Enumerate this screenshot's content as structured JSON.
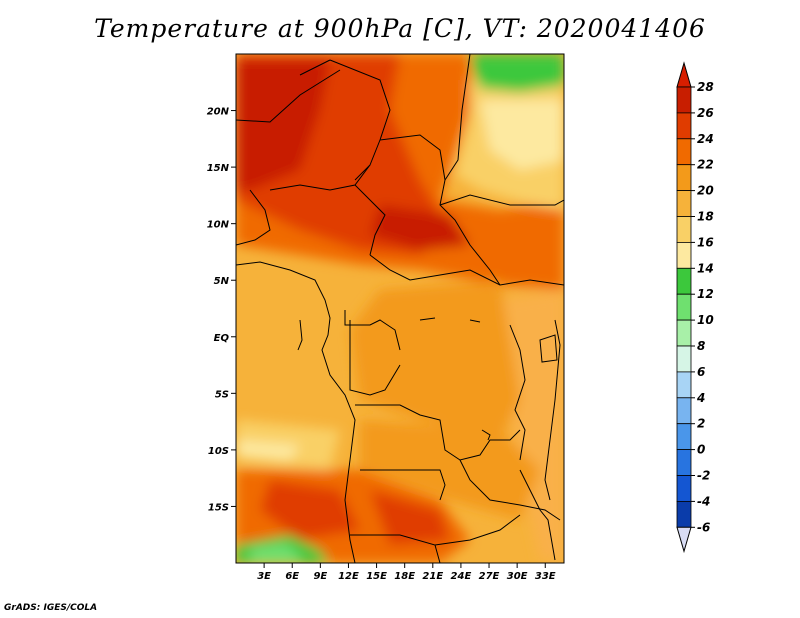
{
  "title": "Temperature at 900hPa [C], VT: 2020041406",
  "credit": "GrADS: IGES/COLA",
  "map": {
    "lat_ticks": [
      "20N",
      "15N",
      "10N",
      "5N",
      "EQ",
      "5S",
      "10S",
      "15S"
    ],
    "lon_ticks": [
      "3E",
      "6E",
      "9E",
      "12E",
      "15E",
      "18E",
      "21E",
      "24E",
      "27E",
      "30E",
      "33E"
    ],
    "lat_values": [
      20,
      15,
      10,
      5,
      0,
      -5,
      -10,
      -15
    ],
    "lon_values": [
      3,
      6,
      9,
      12,
      15,
      18,
      21,
      24,
      27,
      30,
      33
    ],
    "lon_range": [
      0,
      35
    ],
    "lat_range": [
      -20,
      25
    ]
  },
  "colorbar": {
    "labels": [
      "28",
      "26",
      "24",
      "22",
      "20",
      "18",
      "16",
      "14",
      "12",
      "10",
      "8",
      "6",
      "4",
      "2",
      "0",
      "-2",
      "-4",
      "-6"
    ],
    "colors": [
      "#c81e00",
      "#e03c00",
      "#f06a00",
      "#f39a1a",
      "#f6b23a",
      "#f9d066",
      "#fde9a0",
      "#3cc83c",
      "#6fe06f",
      "#a8f0a8",
      "#d6f5e6",
      "#a8d4f5",
      "#78b4f0",
      "#4a96ea",
      "#2874e0",
      "#1456d2",
      "#0a3caa",
      "#062078"
    ],
    "top_color": "#d81e00",
    "bottom_color": "#d8dcf4"
  }
}
